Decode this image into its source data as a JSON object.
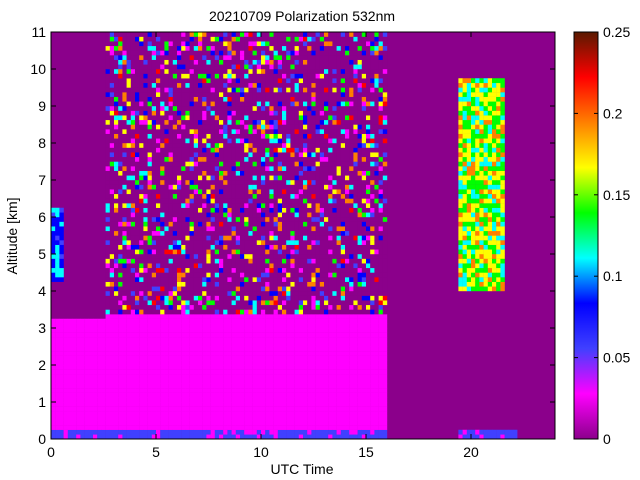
{
  "chart_data": {
    "type": "heatmap",
    "title": "20210709 Polarization 532nm",
    "xlabel": "UTC Time",
    "ylabel": "Altitude [km]",
    "xlim": [
      0,
      24
    ],
    "ylim": [
      0,
      11
    ],
    "x_ticks": [
      0,
      5,
      10,
      15,
      20
    ],
    "y_ticks": [
      0,
      1,
      2,
      3,
      4,
      5,
      6,
      7,
      8,
      9,
      10,
      11
    ],
    "colorbar": {
      "range": [
        0,
        0.25
      ],
      "ticks": [
        0,
        0.05,
        0.1,
        0.15,
        0.2,
        0.25
      ],
      "tick_labels": [
        "0",
        "0.05",
        "0.1",
        "0.15",
        "0.2",
        "0.25"
      ],
      "colormap": [
        "#8b008b",
        "#ff00ff",
        "#4040ff",
        "#0000ff",
        "#00ffff",
        "#00ff00",
        "#ffff00",
        "#ff8000",
        "#ff0000",
        "#5a1a00"
      ]
    },
    "no_data_color": "#8b008b",
    "no_data_intervals_utc": [
      [
        16.05,
        19.3
      ],
      [
        22.3,
        24.0
      ]
    ],
    "features": [
      {
        "utc": [
          0.0,
          2.6
        ],
        "altitude_km": [
          0,
          3.2
        ],
        "level": 0.02
      },
      {
        "utc": [
          2.6,
          16.0
        ],
        "altitude_km": [
          0,
          3.4
        ],
        "level": 0.02
      },
      {
        "utc": [
          2.6,
          16.0
        ],
        "altitude_km": [
          3.4,
          11
        ],
        "level": "noise"
      },
      {
        "utc": [
          0.0,
          0.5
        ],
        "altitude_km": [
          4.3,
          6.2
        ],
        "level": 0.09
      },
      {
        "utc": [
          19.5,
          21.5
        ],
        "altitude_km": [
          4.0,
          9.8
        ],
        "level": 0.15
      },
      {
        "utc": [
          0.0,
          24.0
        ],
        "altitude_km": [
          0,
          0.3
        ],
        "level": 0.05
      }
    ]
  }
}
